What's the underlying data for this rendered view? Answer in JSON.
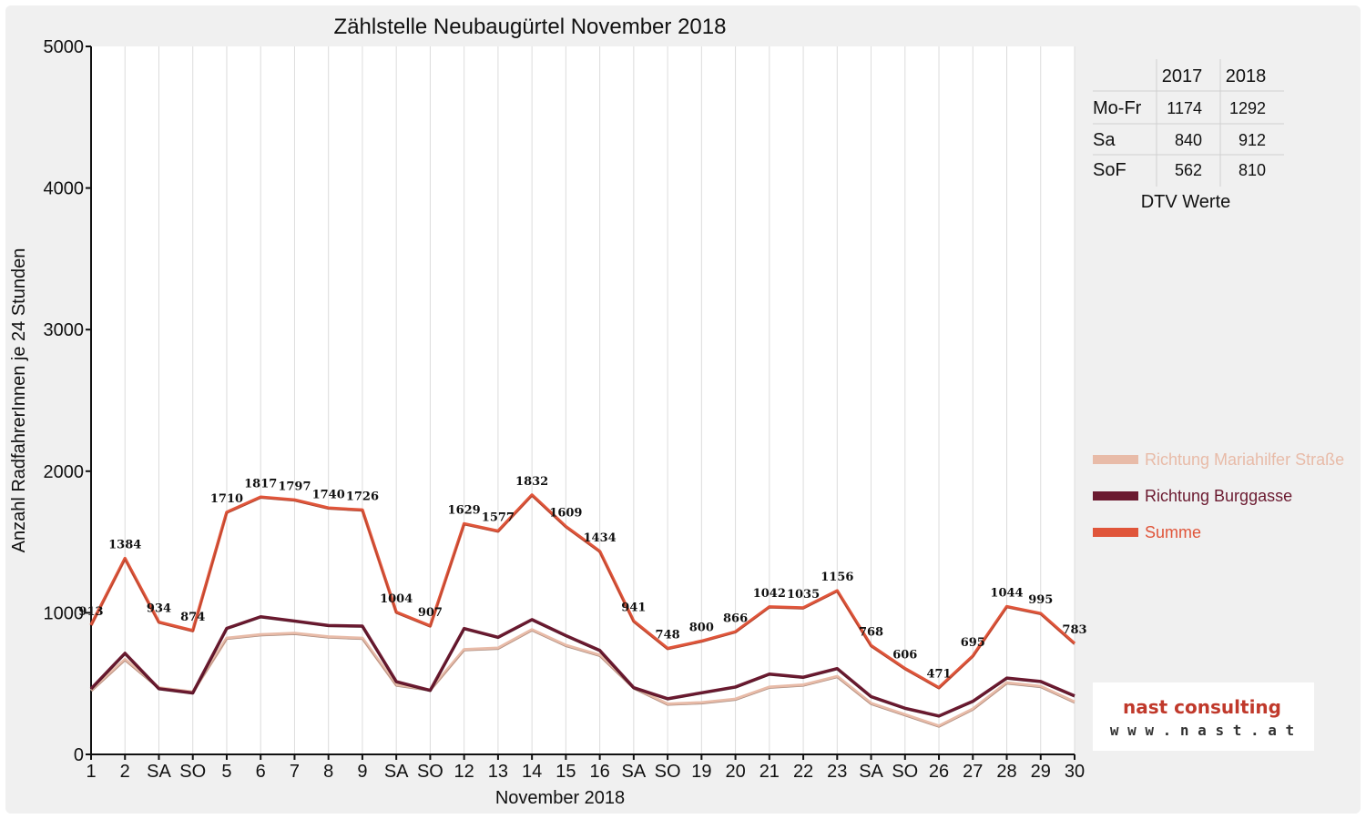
{
  "chart_data": {
    "type": "line",
    "title": "Zählstelle Neubaugürtel November 2018",
    "xlabel": "November 2018",
    "ylabel": "Anzahl RadfahrerInnen je 24 Stunden",
    "ylim": [
      0,
      5000
    ],
    "yticks": [
      "0",
      "1000",
      "2000",
      "3000",
      "4000",
      "5000"
    ],
    "categories": [
      "1",
      "2",
      "SA",
      "SO",
      "5",
      "6",
      "7",
      "8",
      "9",
      "SA",
      "SO",
      "12",
      "13",
      "14",
      "15",
      "16",
      "SA",
      "SO",
      "19",
      "20",
      "21",
      "22",
      "23",
      "SA",
      "SO",
      "26",
      "27",
      "28",
      "29",
      "30"
    ],
    "highlight_categories": [
      0,
      3,
      10,
      17,
      24
    ],
    "series": [
      {
        "name": "Richtung Mariahilfer Straße",
        "color": "#e8bba8",
        "values": [
          450,
          670,
          470,
          440,
          820,
          845,
          855,
          830,
          820,
          490,
          455,
          740,
          750,
          880,
          770,
          700,
          470,
          355,
          365,
          390,
          475,
          490,
          550,
          360,
          280,
          200,
          320,
          505,
          480,
          370
        ]
      },
      {
        "name": "Richtung Burggasse",
        "color": "#6b1a30",
        "values": [
          463,
          714,
          464,
          434,
          890,
          972,
          942,
          910,
          906,
          514,
          452,
          889,
          827,
          952,
          839,
          734,
          471,
          393,
          435,
          476,
          567,
          545,
          606,
          408,
          326,
          271,
          375,
          539,
          515,
          413
        ]
      },
      {
        "name": "Summe",
        "color": "#e0553a",
        "values": [
          913,
          1384,
          934,
          874,
          1710,
          1817,
          1797,
          1740,
          1726,
          1004,
          907,
          1629,
          1577,
          1832,
          1609,
          1434,
          941,
          748,
          800,
          866,
          1042,
          1035,
          1156,
          768,
          606,
          471,
          695,
          1044,
          995,
          783
        ]
      }
    ]
  },
  "dtv_table": {
    "headers": [
      "",
      "2017",
      "2018"
    ],
    "rows": [
      {
        "label": "Mo-Fr",
        "v2017": "1174",
        "v2018": "1292"
      },
      {
        "label": "Sa",
        "v2017": "840",
        "v2018": "912"
      },
      {
        "label": "SoF",
        "v2017": "562",
        "v2018": "810"
      }
    ],
    "caption": "DTV Werte"
  },
  "logo": {
    "line1": "nast consulting",
    "line2": "w w w . n a s t . a t"
  }
}
